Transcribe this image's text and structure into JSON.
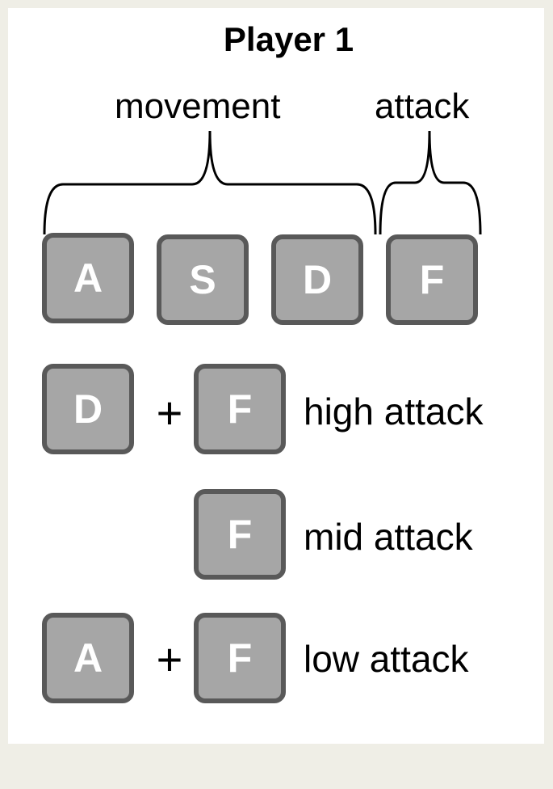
{
  "title": "Player 1",
  "groups": {
    "movement": "movement",
    "attack": "attack"
  },
  "keys": {
    "a": "A",
    "s": "S",
    "d": "D",
    "f": "F"
  },
  "combos": {
    "high": {
      "first": "D",
      "plus": "+",
      "second": "F",
      "label": "high attack"
    },
    "mid": {
      "key": "F",
      "label": "mid attack"
    },
    "low": {
      "first": "A",
      "plus": "+",
      "second": "F",
      "label": "low attack"
    }
  },
  "colors": {
    "frame": "#efeee6",
    "panel": "#ffffff",
    "key_fill": "#a6a6a6",
    "key_border": "#595959",
    "key_text": "#ffffff",
    "text": "#000000"
  }
}
